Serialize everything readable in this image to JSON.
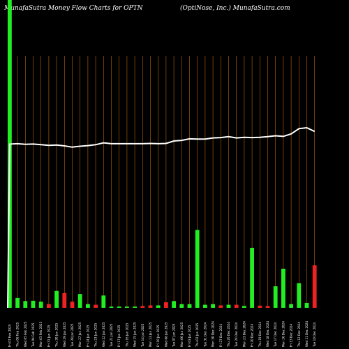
{
  "header": {
    "left": "MunafaSutra  Money Flow  Charts for OPTN",
    "right": "(OptiNose,  Inc.) MunafaSutra.com"
  },
  "colors": {
    "background": "#000000",
    "up": "#22ee22",
    "down": "#ee2222",
    "grid": "#b8680f",
    "line": "#ffffff"
  },
  "chart_data": {
    "type": "bar",
    "ylim": [
      0,
      100
    ],
    "categories": [
      "Fri 07 Feb 2025",
      "Thu 06 Feb 2025",
      "Wed 05 Feb 2025",
      "Tue 04 Feb 2025",
      "Mon 03 Feb 2025",
      "Fri 31 Jan 2025",
      "Thu 30 Jan 2025",
      "Wed 29 Jan 2025",
      "Tue 28 Jan 2025",
      "Mon 27 Jan 2025",
      "Fri 24 Jan 2025",
      "Thu 23 Jan 2025",
      "Wed 22 Jan 2025",
      "Tue 21 Jan 2025",
      "Fri 17 Jan 2025",
      "Thu 16 Jan 2025",
      "Wed 15 Jan 2025",
      "Tue 14 Jan 2025",
      "Mon 13 Jan 2025",
      "Fri 10 Jan 2025",
      "Wed 08 Jan 2025",
      "Tue 07 Jan 2025",
      "Mon 06 Jan 2025",
      "Fri 03 Jan 2025",
      "Thu 02 Jan 2025",
      "Tue 31 Dec 2024",
      "Mon 30 Dec 2024",
      "Fri 27 Dec 2024",
      "Thu 26 Dec 2024",
      "Tue 24 Dec 2024",
      "Mon 23 Dec 2024",
      "Fri 20 Dec 2024",
      "Thu 19 Dec 2024",
      "Wed 18 Dec 2024",
      "Tue 17 Dec 2024",
      "Mon 16 Dec 2024",
      "Fri 13 Dec 2024",
      "Thu 12 Dec 2024",
      "Wed 11 Dec 2024",
      "Tue 10 Dec 2024"
    ],
    "series": [
      {
        "values": [
          100,
          3.2,
          2.2,
          2.3,
          2.0,
          1.2,
          5.5,
          4.8,
          2.0,
          4.5,
          1.2,
          1.0,
          4.0,
          0.4,
          0.4,
          0.4,
          0.4,
          0.6,
          0.8,
          0.8,
          1.8,
          2.2,
          1.2,
          1.2,
          25.3,
          1.0,
          1.2,
          0.8,
          1.0,
          1.0,
          0.6,
          19.5,
          0.7,
          0.6,
          7.0,
          12.7,
          1.2,
          8.0,
          1.6,
          13.8
        ],
        "direction": [
          "up",
          "up",
          "up",
          "up",
          "up",
          "down",
          "up",
          "down",
          "down",
          "up",
          "up",
          "down",
          "up",
          "up",
          "up",
          "up",
          "up",
          "down",
          "down",
          "up",
          "down",
          "up",
          "up",
          "up",
          "up",
          "up",
          "up",
          "down",
          "up",
          "down",
          "up",
          "up",
          "down",
          "down",
          "up",
          "up",
          "up",
          "up",
          "up",
          "down"
        ]
      },
      {
        "values": [
          53.2,
          53.3,
          53.1,
          53.2,
          53.0,
          52.8,
          52.9,
          52.6,
          52.2,
          52.5,
          52.7,
          53.0,
          53.6,
          53.3,
          53.3,
          53.3,
          53.3,
          53.3,
          53.4,
          53.3,
          53.4,
          54.2,
          54.4,
          54.9,
          54.8,
          54.8,
          55.2,
          55.3,
          55.6,
          55.2,
          55.4,
          55.3,
          55.4,
          55.6,
          55.9,
          55.7,
          56.5,
          58.2,
          58.5,
          57.3
        ]
      }
    ]
  }
}
